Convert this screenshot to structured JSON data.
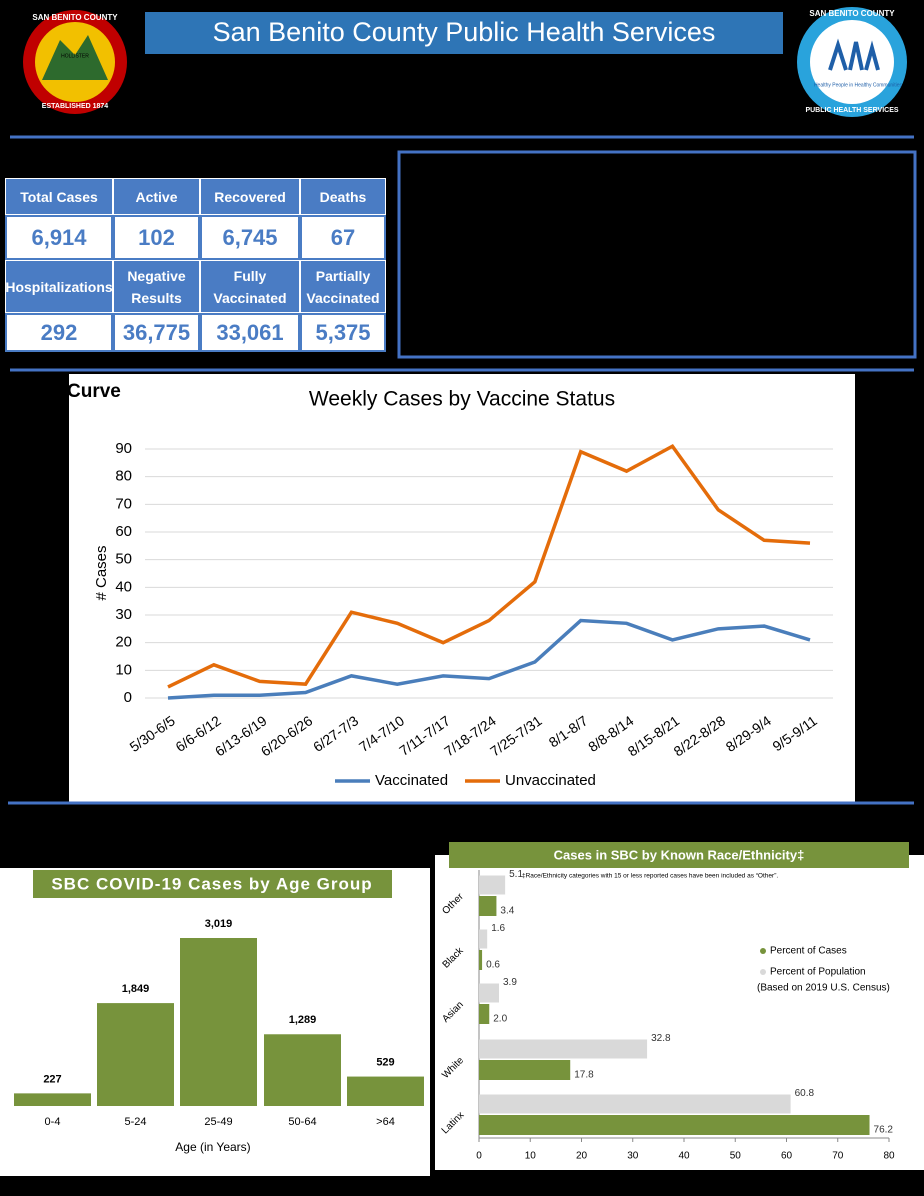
{
  "header": {
    "title": "San Benito County Public Health Services",
    "left_logo": {
      "top": "SAN BENITO COUNTY",
      "city": "HOLLISTER",
      "bottom": "ESTABLISHED 1874"
    },
    "right_logo": {
      "top": "SAN BENITO COUNTY",
      "middle": "Healthy People in Healthy Communities",
      "bottom": "PUBLIC HEALTH SERVICES"
    }
  },
  "stats": {
    "cells": [
      {
        "label": "Total Cases",
        "value": "6,914"
      },
      {
        "label": "Active",
        "value": "102"
      },
      {
        "label": "Recovered",
        "value": "6,745"
      },
      {
        "label": "Deaths",
        "value": "67"
      },
      {
        "label": "Hospitalizations",
        "value": "292"
      },
      {
        "label": "Negative Results",
        "value": "36,775"
      },
      {
        "label": "Fully Vaccinated",
        "value": "33,061"
      },
      {
        "label": "Partially Vaccinated",
        "value": "5,375"
      }
    ]
  },
  "section_label": "Curve",
  "chart_data": [
    {
      "type": "line",
      "title": "Weekly Cases by Vaccine Status",
      "y_label": "# Cases",
      "categories": [
        "5/30-6/5",
        "6/6-6/12",
        "6/13-6/19",
        "6/20-6/26",
        "6/27-7/3",
        "7/4-7/10",
        "7/11-7/17",
        "7/18-7/24",
        "7/25-7/31",
        "8/1-8/7",
        "8/8-8/14",
        "8/15-8/21",
        "8/22-8/28",
        "8/29-9/4",
        "9/5-9/11"
      ],
      "series": [
        {
          "name": "Vaccinated",
          "color": "#4a7ebb",
          "values": [
            0,
            1,
            1,
            2,
            8,
            5,
            8,
            7,
            13,
            28,
            27,
            21,
            25,
            26,
            21
          ]
        },
        {
          "name": "Unvaccinated",
          "color": "#e46c0a",
          "values": [
            4,
            12,
            6,
            5,
            31,
            27,
            20,
            28,
            42,
            89,
            82,
            91,
            68,
            57,
            56
          ]
        }
      ],
      "ylim": [
        0,
        90
      ],
      "yticks": [
        0,
        10,
        20,
        30,
        40,
        50,
        60,
        70,
        80,
        90
      ],
      "grid": true,
      "legend": "bottom"
    },
    {
      "type": "bar",
      "title": "SBC COVID-19 Cases by Age Group",
      "x_label": "Age (in Years)",
      "categories": [
        "0-4",
        "5-24",
        "25-49",
        "50-64",
        ">64"
      ],
      "values": [
        227,
        1849,
        3019,
        1289,
        529
      ],
      "value_labels": [
        "227",
        "1,849",
        "3,019",
        "1,289",
        "529"
      ],
      "color": "#77933c"
    },
    {
      "type": "hbar",
      "title": "Cases in SBC by Known Race/Ethnicity‡",
      "note": "‡Race/Ethnicity categories with 15 or less reported cases have been included as “Other”.",
      "categories": [
        "Other",
        "Black",
        "Asian",
        "White",
        "Latinx"
      ],
      "series": [
        {
          "name": "Percent of Population",
          "color": "#d9d9d9",
          "values": [
            5.1,
            1.6,
            3.9,
            32.8,
            60.8
          ],
          "value_labels": [
            "5.1",
            "1.6",
            "3.9",
            "32.8",
            "60.8"
          ]
        },
        {
          "name": "Percent of Cases",
          "color": "#77933c",
          "values": [
            3.4,
            0.6,
            2.0,
            17.8,
            76.2
          ],
          "value_labels": [
            "3.4",
            "0.6",
            "2.0",
            "17.8",
            "76.2"
          ]
        }
      ],
      "legend_note": "(Based on 2019 U.S. Census)",
      "xlim": [
        0,
        80
      ],
      "xticks": [
        0,
        10,
        20,
        30,
        40,
        50,
        60,
        70,
        80
      ],
      "legend": "right"
    }
  ]
}
